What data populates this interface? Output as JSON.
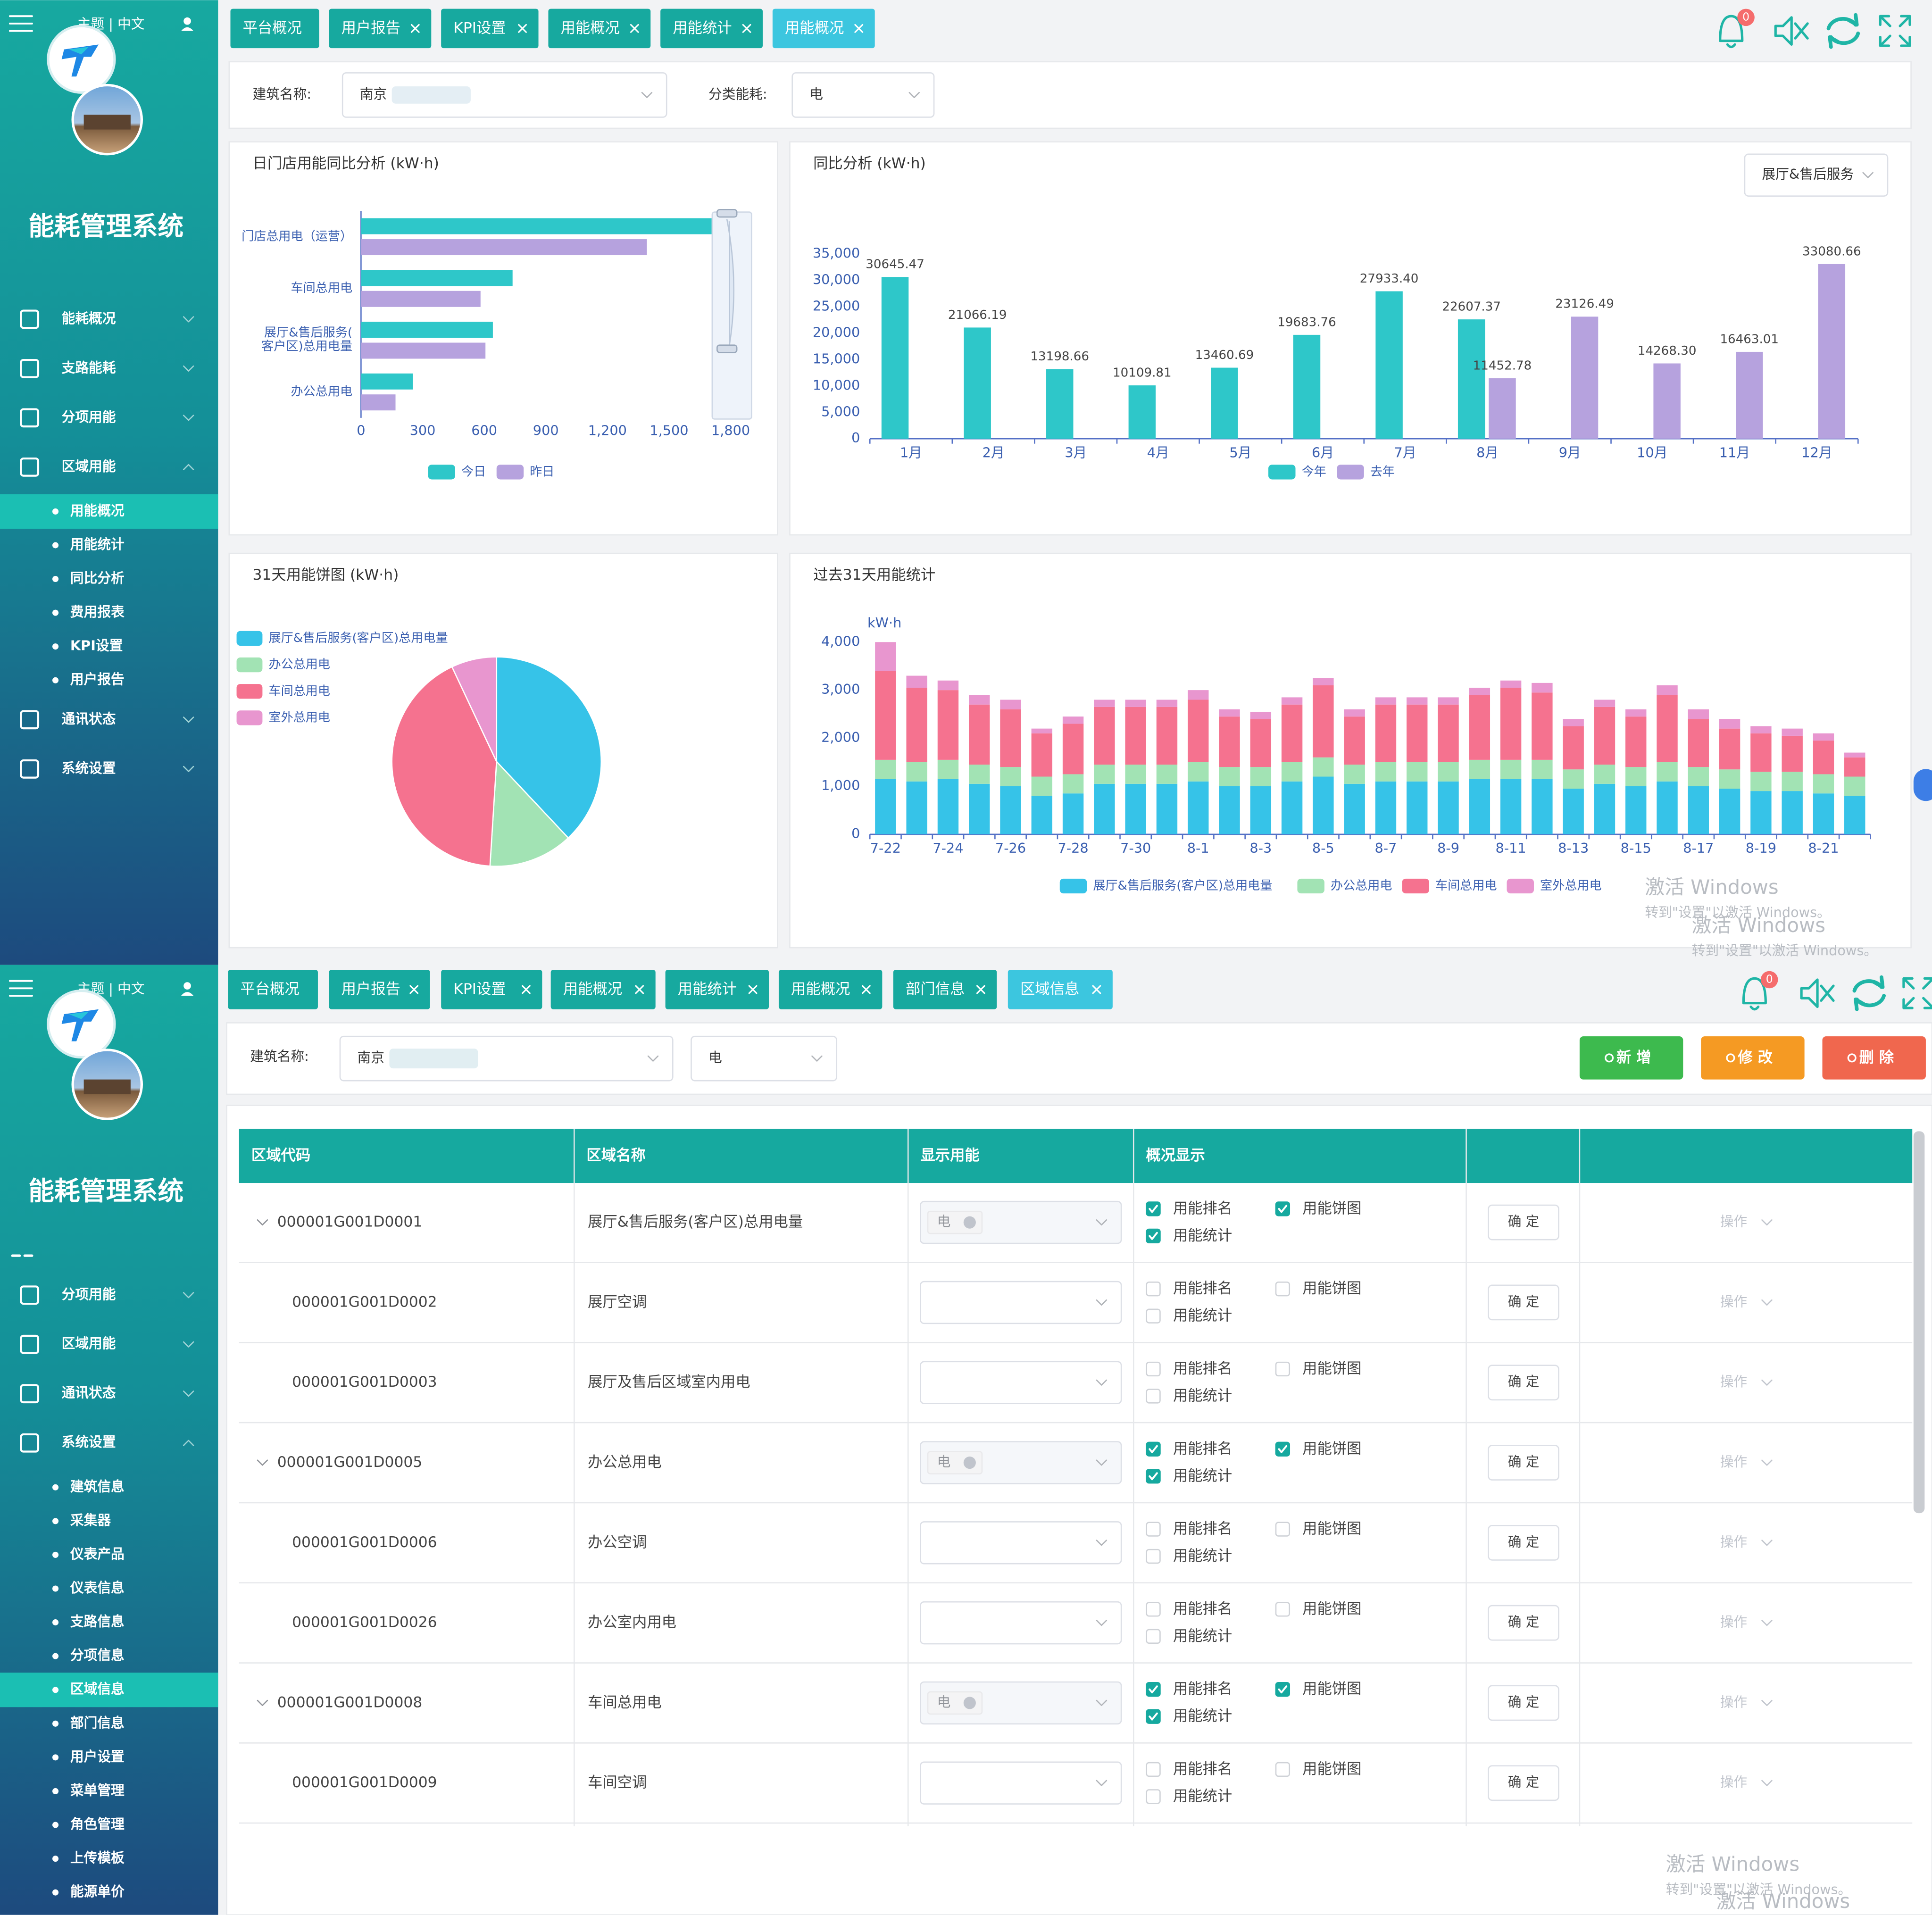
{
  "screen1": {
    "header": "主题 | 中文",
    "system_title": "能耗管理系统",
    "sidebar": [
      {
        "label": "能耗概况"
      },
      {
        "label": "支路能耗"
      },
      {
        "label": "分项用能"
      },
      {
        "label": "区域用能",
        "children": [
          {
            "label": "用能概况",
            "selected": true
          },
          {
            "label": "用能统计"
          },
          {
            "label": "同比分析"
          },
          {
            "label": "费用报表"
          },
          {
            "label": "KPI设置"
          },
          {
            "label": "用户报告"
          }
        ]
      },
      {
        "label": "通讯状态"
      },
      {
        "label": "系统设置"
      }
    ],
    "tabs": [
      {
        "label": "平台概况"
      },
      {
        "label": "用户报告",
        "closable": true
      },
      {
        "label": "KPI设置",
        "closable": true
      },
      {
        "label": "用能概况",
        "closable": true
      },
      {
        "label": "用能统计",
        "closable": true
      },
      {
        "label": "用能概况",
        "closable": true,
        "active": true
      }
    ],
    "notifications": "0",
    "filter": {
      "building_label": "建筑名称:",
      "building": "南京",
      "category_label": "分类能耗:",
      "category": "电"
    },
    "yoy_selector": "展厅&售后服务"
  },
  "screen2": {
    "header": "主题 | 中文",
    "system_title": "能耗管理系统",
    "sidebar": [
      {
        "label": "分项用能"
      },
      {
        "label": "区域用能"
      },
      {
        "label": "通讯状态"
      },
      {
        "label": "系统设置",
        "children": [
          {
            "label": "建筑信息"
          },
          {
            "label": "采集器"
          },
          {
            "label": "仪表产品"
          },
          {
            "label": "仪表信息"
          },
          {
            "label": "支路信息"
          },
          {
            "label": "分项信息"
          },
          {
            "label": "区域信息",
            "selected": true
          },
          {
            "label": "部门信息"
          },
          {
            "label": "用户设置"
          },
          {
            "label": "菜单管理"
          },
          {
            "label": "角色管理"
          },
          {
            "label": "上传模板"
          },
          {
            "label": "能源单价"
          }
        ]
      }
    ],
    "tabs": [
      {
        "label": "平台概况"
      },
      {
        "label": "用户报告",
        "closable": true
      },
      {
        "label": "KPI设置",
        "closable": true
      },
      {
        "label": "用能概况",
        "closable": true
      },
      {
        "label": "用能统计",
        "closable": true
      },
      {
        "label": "用能概况",
        "closable": true
      },
      {
        "label": "部门信息",
        "closable": true
      },
      {
        "label": "区域信息",
        "closable": true,
        "active": true
      }
    ],
    "notifications": "0",
    "filter": {
      "building_label": "建筑名称:",
      "building": "南京",
      "category": "电"
    },
    "buttons": [
      {
        "label": "新 增",
        "color": "#3dba4e"
      },
      {
        "label": "修 改",
        "color": "#f59a23"
      },
      {
        "label": "删 除",
        "color": "#f0674e"
      }
    ],
    "table": {
      "columns": [
        "区域代码",
        "区域名称",
        "显示用能",
        "概况显示"
      ],
      "check_labels": [
        "用能排名",
        "用能饼图",
        "用能统计"
      ],
      "confirm": "确 定",
      "action": "操作",
      "rows": [
        {
          "code": "000001G001D0001",
          "name": "展厅&售后服务(客户区)总用电量",
          "energy": "电",
          "expandable": true,
          "checks": [
            true,
            true,
            true
          ]
        },
        {
          "code": "000001G001D0002",
          "name": "展厅空调",
          "checks": [
            false,
            false,
            false
          ]
        },
        {
          "code": "000001G001D0003",
          "name": "展厅及售后区域室内用电",
          "checks": [
            false,
            false,
            false
          ]
        },
        {
          "code": "000001G001D0005",
          "name": "办公总用电",
          "energy": "电",
          "expandable": true,
          "checks": [
            true,
            true,
            true
          ]
        },
        {
          "code": "000001G001D0006",
          "name": "办公空调",
          "checks": [
            false,
            false,
            false
          ]
        },
        {
          "code": "000001G001D0026",
          "name": "办公室内用电",
          "checks": [
            false,
            false,
            false
          ]
        },
        {
          "code": "000001G001D0008",
          "name": "车间总用电",
          "energy": "电",
          "expandable": true,
          "checks": [
            true,
            true,
            true
          ]
        },
        {
          "code": "000001G001D0009",
          "name": "车间空调",
          "checks": [
            false,
            false,
            false
          ]
        }
      ]
    }
  },
  "watermark": {
    "title": "激活 Windows",
    "hint": "转到\"设置\"以激活 Windows。"
  },
  "chart_data": [
    {
      "type": "bar",
      "horizontal": true,
      "title": "日门店用能同比分析 (kW·h)",
      "categories": [
        "门店总用电（运营）",
        "车间总用电",
        "展厅&售后服务(客户区)总用电量",
        "办公总用电"
      ],
      "series": [
        {
          "name": "今日",
          "color": "#2ec7c9",
          "values": [
            1710,
            738,
            642,
            252
          ]
        },
        {
          "name": "昨日",
          "color": "#b6a2de",
          "values": [
            1392,
            582,
            606,
            168
          ]
        }
      ],
      "xlim": [
        0,
        1800
      ],
      "xticks": [
        0,
        300,
        600,
        900,
        {
          "value": 1200,
          "label": "1,200"
        },
        {
          "value": 1500,
          "label": "1,500"
        },
        {
          "value": 1800,
          "label": "1,800"
        }
      ],
      "legend": "bottom"
    },
    {
      "type": "bar",
      "title": "同比分析 (kW·h)",
      "categories": [
        "1月",
        "2月",
        "3月",
        "4月",
        "5月",
        "6月",
        "7月",
        "8月",
        "9月",
        "10月",
        "11月",
        "12月"
      ],
      "series": [
        {
          "name": "今年",
          "color": "#2ec7c9",
          "values": [
            30645.47,
            21066.19,
            13198.66,
            10109.81,
            13460.69,
            19683.76,
            27933.4,
            22607.37,
            null,
            null,
            null,
            null
          ],
          "value_labels": [
            "30645.47",
            "21066.19",
            "13198.66",
            "10109.81",
            "13460.69",
            "19683.76",
            "27933.40",
            "22607.37",
            null,
            null,
            null,
            null
          ]
        },
        {
          "name": "去年",
          "color": "#b6a2de",
          "values": [
            null,
            null,
            null,
            null,
            null,
            null,
            null,
            11452.78,
            23126.49,
            14268.3,
            16463.01,
            33080.66
          ],
          "value_labels": [
            null,
            null,
            null,
            null,
            null,
            null,
            null,
            "11452.78",
            "23126.49",
            "14268.30",
            "16463.01",
            "33080.66"
          ]
        }
      ],
      "ylim": [
        0,
        35000
      ],
      "yticks": [
        0,
        {
          "value": 5000,
          "label": "5,000"
        },
        {
          "value": 10000,
          "label": "10,000"
        },
        {
          "value": 15000,
          "label": "15,000"
        },
        {
          "value": 20000,
          "label": "20,000"
        },
        {
          "value": 25000,
          "label": "25,000"
        },
        {
          "value": 30000,
          "label": "30,000"
        },
        {
          "value": 35000,
          "label": "35,000"
        }
      ],
      "legend": "bottom"
    },
    {
      "type": "pie",
      "title": "31天用能饼图 (kW·h)",
      "categories": [
        "展厅&售后服务(客户区)总用电量",
        "办公总用电",
        "车间总用电",
        "室外总用电"
      ],
      "values": [
        38,
        13,
        42,
        7
      ],
      "colors": [
        "#36c3e8",
        "#a2e3b4",
        "#f5728f",
        "#e896cf"
      ],
      "legend": "top-left"
    },
    {
      "type": "bar",
      "stacked": true,
      "title": "过去31天用能统计",
      "y_label": "kW·h",
      "categories": [
        "7-22",
        null,
        "7-24",
        null,
        "7-26",
        null,
        "7-28",
        null,
        "7-30",
        null,
        "8-1",
        null,
        "8-3",
        null,
        "8-5",
        null,
        "8-7",
        null,
        "8-9",
        null,
        "8-11",
        null,
        "8-13",
        null,
        "8-15",
        null,
        "8-17",
        null,
        "8-19",
        null,
        "8-21",
        null
      ],
      "series": [
        {
          "name": "展厅&售后服务(客户区)总用电量",
          "color": "#36c3e8",
          "values": [
            1150,
            1100,
            1150,
            1050,
            1000,
            800,
            850,
            1050,
            1050,
            1050,
            1100,
            1000,
            1000,
            1100,
            1200,
            1050,
            1100,
            1100,
            1100,
            1150,
            1150,
            1150,
            950,
            1050,
            1000,
            1100,
            1000,
            950,
            900,
            900,
            850,
            800
          ]
        },
        {
          "name": "办公总用电",
          "color": "#a2e3b4",
          "values": [
            400,
            400,
            400,
            400,
            400,
            400,
            400,
            400,
            400,
            400,
            400,
            400,
            400,
            400,
            400,
            400,
            400,
            400,
            400,
            400,
            400,
            400,
            400,
            400,
            400,
            400,
            400,
            400,
            400,
            400,
            400,
            400
          ]
        },
        {
          "name": "车间总用电",
          "color": "#f5728f",
          "values": [
            1850,
            1550,
            1450,
            1250,
            1200,
            900,
            1050,
            1200,
            1200,
            1200,
            1300,
            1050,
            1000,
            1200,
            1500,
            1000,
            1200,
            1200,
            1200,
            1350,
            1500,
            1400,
            900,
            1200,
            1050,
            1400,
            1000,
            850,
            800,
            750,
            700,
            400
          ]
        },
        {
          "name": "室外总用电",
          "color": "#e896cf",
          "values": [
            600,
            250,
            200,
            200,
            200,
            100,
            150,
            150,
            150,
            150,
            200,
            150,
            150,
            150,
            150,
            150,
            150,
            150,
            150,
            150,
            150,
            200,
            150,
            150,
            150,
            200,
            200,
            200,
            150,
            150,
            150,
            100
          ]
        }
      ],
      "ylim": [
        0,
        4000
      ],
      "yticks": [
        0,
        {
          "value": 1000,
          "label": "1,000"
        },
        {
          "value": 2000,
          "label": "2,000"
        },
        {
          "value": 3000,
          "label": "3,000"
        },
        {
          "value": 4000,
          "label": "4,000"
        }
      ],
      "legend": "bottom"
    }
  ]
}
